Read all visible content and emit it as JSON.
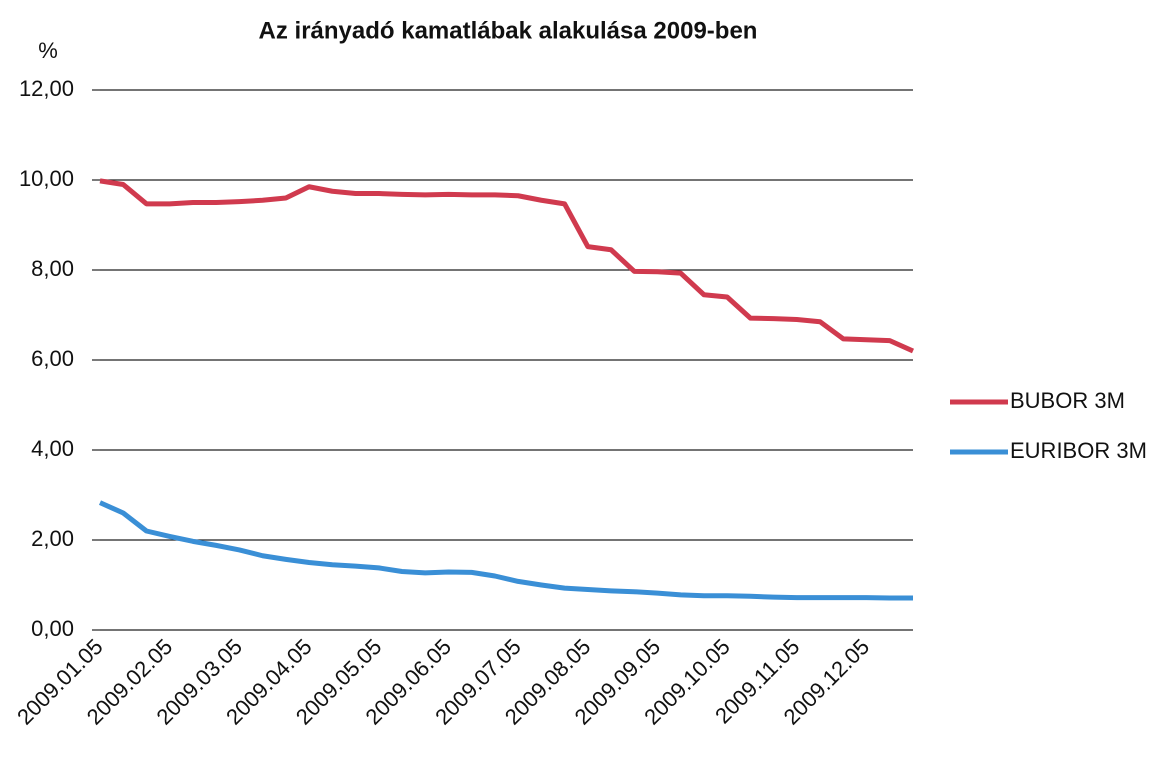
{
  "chart_data": {
    "type": "line",
    "title": "Az irányadó kamatlábak alakulása 2009-ben",
    "y_label": "%",
    "categories": [
      "2009.01.05",
      null,
      null,
      "2009.02.05",
      null,
      null,
      "2009.03.05",
      null,
      null,
      "2009.04.05",
      null,
      null,
      "2009.05.05",
      null,
      null,
      "2009.06.05",
      null,
      null,
      "2009.07.05",
      null,
      null,
      "2009.08.05",
      null,
      null,
      "2009.09.05",
      null,
      null,
      "2009.10.05",
      null,
      null,
      "2009.11.05",
      null,
      null,
      "2009.12.05",
      null,
      null
    ],
    "series": [
      {
        "name": "BUBOR 3M",
        "color": "#d03a4e",
        "values": [
          9.98,
          9.9,
          9.47,
          9.47,
          9.5,
          9.5,
          9.52,
          9.55,
          9.6,
          9.85,
          9.75,
          9.7,
          9.7,
          9.68,
          9.67,
          9.68,
          9.67,
          9.67,
          9.65,
          9.55,
          9.47,
          8.52,
          8.45,
          7.97,
          7.96,
          7.93,
          7.45,
          7.4,
          6.93,
          6.92,
          6.9,
          6.85,
          6.47,
          6.45,
          6.43,
          6.2
        ]
      },
      {
        "name": "EURIBOR 3M",
        "color": "#3a8fd6",
        "values": [
          2.83,
          2.6,
          2.2,
          2.08,
          1.97,
          1.88,
          1.78,
          1.65,
          1.57,
          1.5,
          1.45,
          1.42,
          1.38,
          1.3,
          1.27,
          1.29,
          1.28,
          1.2,
          1.08,
          1.0,
          0.93,
          0.9,
          0.87,
          0.85,
          0.82,
          0.78,
          0.76,
          0.76,
          0.75,
          0.73,
          0.72,
          0.72,
          0.72,
          0.72,
          0.71,
          0.71
        ]
      }
    ],
    "ylim": [
      0,
      12
    ],
    "yticks": [
      {
        "value": 0,
        "label": "0,00"
      },
      {
        "value": 2,
        "label": "2,00"
      },
      {
        "value": 4,
        "label": "4,00"
      },
      {
        "value": 6,
        "label": "6,00"
      },
      {
        "value": 8,
        "label": "8,00"
      },
      {
        "value": 10,
        "label": "10,00"
      },
      {
        "value": 12,
        "label": "12,00"
      }
    ],
    "grid": true,
    "legend": "right"
  }
}
